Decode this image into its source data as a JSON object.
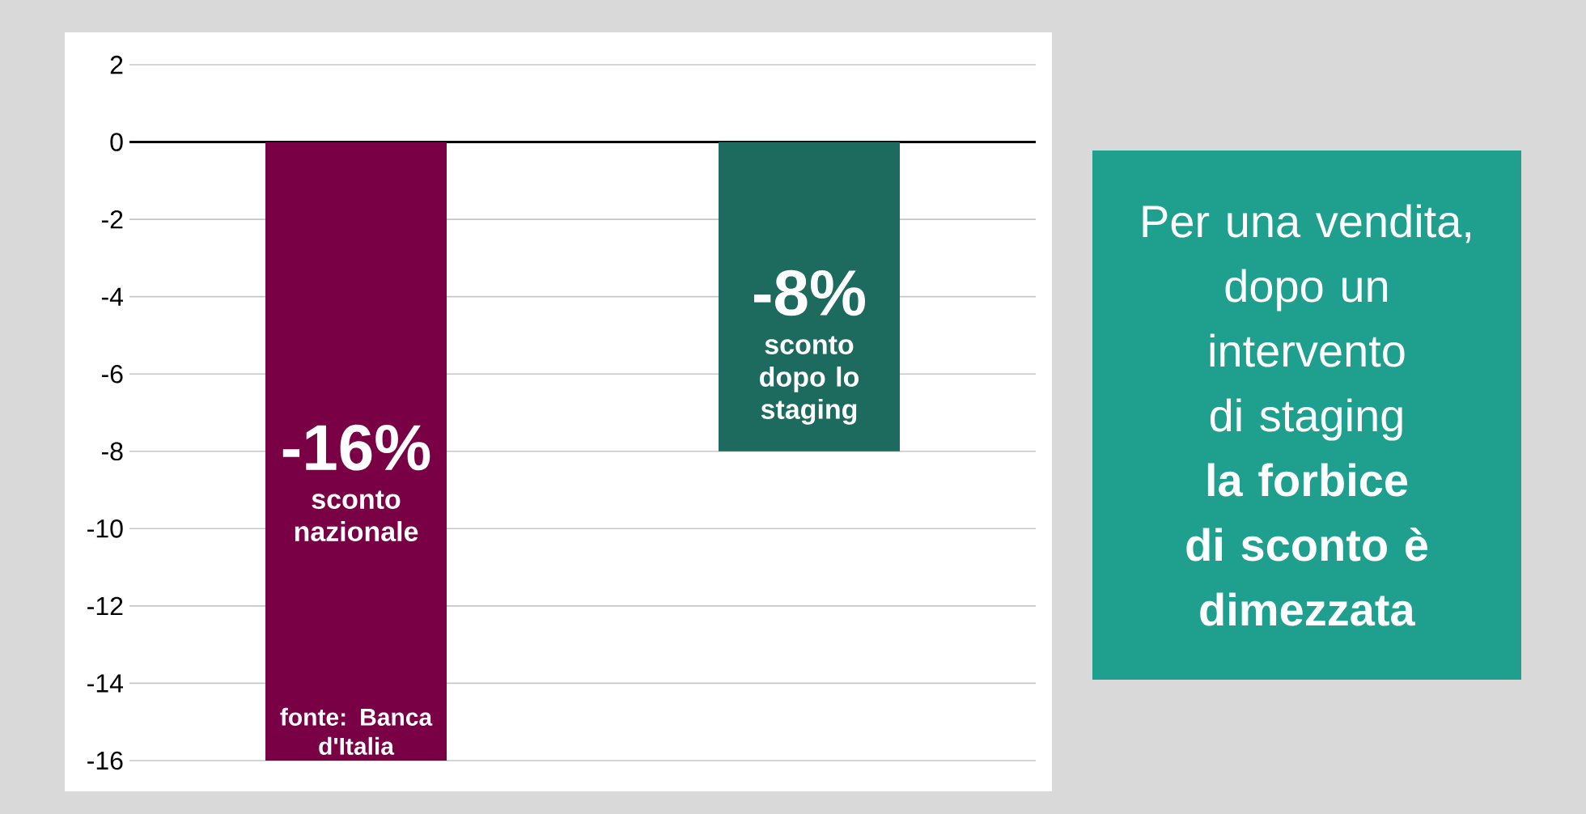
{
  "chart_data": {
    "type": "bar",
    "categories": [
      null,
      null
    ],
    "values": [
      -16,
      -8
    ],
    "colors": [
      "#7a0045",
      "#1d6b5f"
    ],
    "value_labels": [
      "-16%",
      "-8%"
    ],
    "ylim": [
      -16,
      2
    ],
    "yticks": [
      -16,
      -14,
      -12,
      -10,
      -8,
      -6,
      -4,
      -2,
      0,
      2
    ],
    "grid": "y",
    "annotations": [
      "sconto nazionale",
      "fonte: Banca d'Italia",
      "sconto dopo lo staging",
      "Per una vendita, dopo un intervento di staging **la forbice di sconto è dimezzata**"
    ]
  }
}
